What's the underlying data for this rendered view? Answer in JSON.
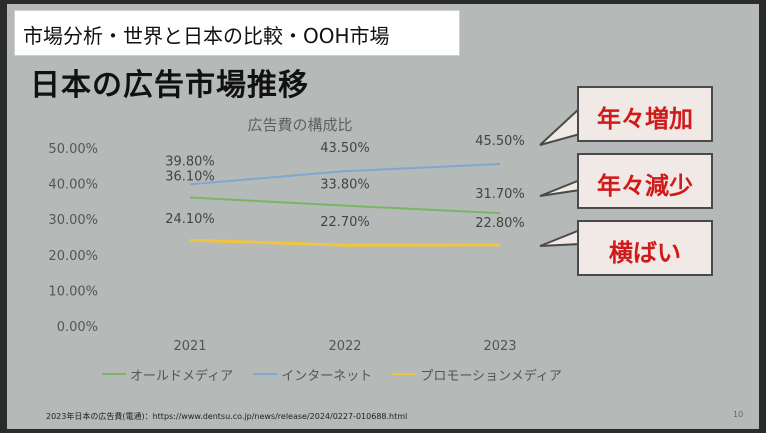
{
  "header": {
    "text": "市場分析・世界と日本の比較・OOH市場"
  },
  "page_title": "日本の広告市場推移",
  "callouts": [
    {
      "label": "年々増加"
    },
    {
      "label": "年々減少"
    },
    {
      "label": "横ばい"
    }
  ],
  "source": "2023年日本の広告費(電通)：https://www.dentsu.co.jp/news/release/2024/0227-010688.html",
  "page_number": "10",
  "colors": {
    "internet": "#7fa7cd",
    "old_media": "#79b562",
    "promotion": "#f0c43c",
    "callout_text": "#d01a1a"
  },
  "chart_data": {
    "type": "line",
    "title": "広告費の構成比",
    "categories": [
      "2021",
      "2022",
      "2023"
    ],
    "ylim": [
      0,
      50
    ],
    "yticks": [
      "0.00%",
      "10.00%",
      "20.00%",
      "30.00%",
      "40.00%",
      "50.00%"
    ],
    "grid": false,
    "legend_position": "bottom",
    "series": [
      {
        "name": "オールドメディア",
        "values": [
          36.1,
          33.8,
          31.7
        ],
        "labels": [
          "36.10%",
          "33.80%",
          "31.70%"
        ],
        "color": "#79b562"
      },
      {
        "name": "インターネット",
        "values": [
          39.8,
          43.5,
          45.5
        ],
        "labels": [
          "39.80%",
          "43.50%",
          "45.50%"
        ],
        "color": "#7fa7cd"
      },
      {
        "name": "プロモーションメディア",
        "values": [
          24.1,
          22.7,
          22.8
        ],
        "labels": [
          "24.10%",
          "22.70%",
          "22.80%"
        ],
        "color": "#f0c43c"
      }
    ]
  }
}
